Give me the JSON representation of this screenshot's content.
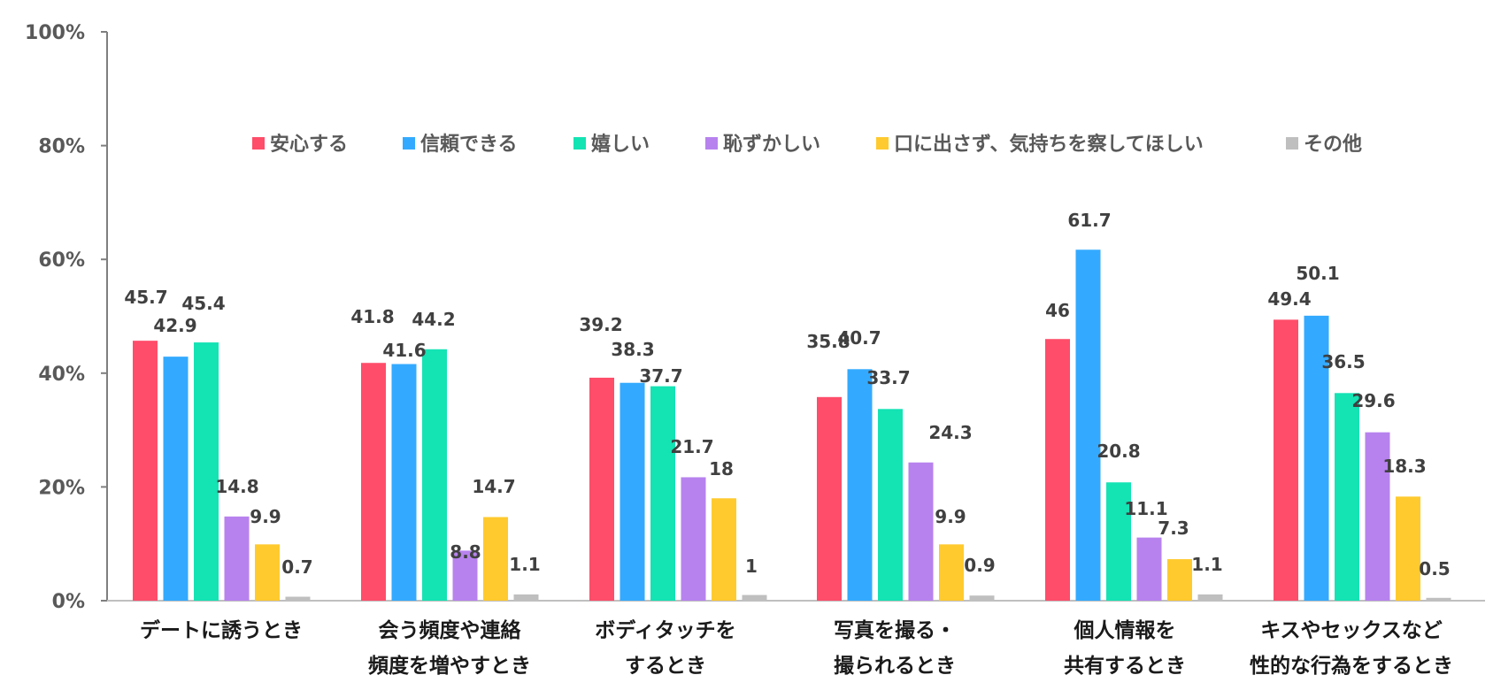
{
  "chart_data": {
    "type": "bar",
    "title": "",
    "xlabel": "",
    "ylabel": "",
    "ylim": [
      0,
      100
    ],
    "y_ticks": [
      "0%",
      "20%",
      "40%",
      "60%",
      "80%",
      "100%"
    ],
    "y_tick_values": [
      0,
      20,
      40,
      60,
      80,
      100
    ],
    "legend_position": "top",
    "grid": false,
    "categories": [
      [
        "デートに誘うとき"
      ],
      [
        "会う頻度や連絡",
        "頻度を増やすとき"
      ],
      [
        "ボディタッチを",
        "するとき"
      ],
      [
        "写真を撮る・",
        "撮られるとき"
      ],
      [
        "個人情報を",
        "共有するとき"
      ],
      [
        "キスやセックスなど",
        "性的な行為をするとき"
      ]
    ],
    "series": [
      {
        "name": "安心する",
        "color": "#ff4d6a",
        "values": [
          45.7,
          41.8,
          39.2,
          35.8,
          46,
          49.4
        ],
        "labels": [
          "45.7",
          "41.8",
          "39.2",
          "35.8",
          "46",
          "49.4"
        ]
      },
      {
        "name": "信頼できる",
        "color": "#33aaff",
        "values": [
          42.9,
          41.6,
          38.3,
          40.7,
          61.7,
          50.1
        ],
        "labels": [
          "42.9",
          "41.6",
          "38.3",
          "40.7",
          "61.7",
          "50.1"
        ]
      },
      {
        "name": "嬉しい",
        "color": "#14e3b4",
        "values": [
          45.4,
          44.2,
          37.7,
          33.7,
          20.8,
          36.5
        ],
        "labels": [
          "45.4",
          "44.2",
          "37.7",
          "33.7",
          "20.8",
          "36.5"
        ]
      },
      {
        "name": "恥ずかしい",
        "color": "#b782ee",
        "values": [
          14.8,
          8.8,
          21.7,
          24.3,
          11.1,
          29.6
        ],
        "labels": [
          "14.8",
          "8.8",
          "21.7",
          "24.3",
          "11.1",
          "29.6"
        ]
      },
      {
        "name": "口に出さず、気持ちを察してほしい",
        "color": "#ffca2e",
        "values": [
          9.9,
          14.7,
          18,
          9.9,
          7.3,
          18.3
        ],
        "labels": [
          "9.9",
          "14.7",
          "18",
          "9.9",
          "7.3",
          "18.3"
        ]
      },
      {
        "name": "その他",
        "color": "#bfbfbf",
        "values": [
          0.7,
          1.1,
          1,
          0.9,
          1.1,
          0.5
        ],
        "labels": [
          "0.7",
          "1.1",
          "1",
          "0.9",
          "1.1",
          "0.5"
        ]
      }
    ]
  }
}
